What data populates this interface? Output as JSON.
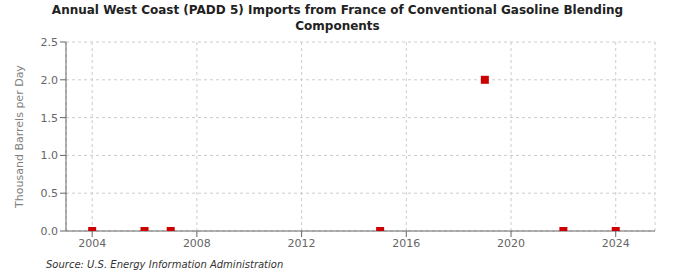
{
  "chart_data": {
    "type": "scatter",
    "title": "Annual West Coast (PADD 5) Imports from France of Conventional Gasoline Blending\nComponents",
    "y_label": "Thousand Barrels per Day",
    "annotations": [
      "Source: U.S. Energy Information Administration"
    ],
    "x": [
      2004,
      2006,
      2007,
      2015,
      2019,
      2022,
      2024
    ],
    "values": [
      0.0,
      0.0,
      0.0,
      0.0,
      2.0,
      0.0,
      0.0
    ],
    "color": "#cc0000",
    "marker": "square",
    "xlim": [
      2003,
      2025.5
    ],
    "ylim": [
      0.0,
      2.5
    ],
    "xticks": [
      2004,
      2008,
      2012,
      2016,
      2020,
      2024
    ],
    "yticks": [
      {
        "value": 0.0,
        "label": "0.0"
      },
      0.5,
      {
        "value": 1.0,
        "label": "1.0"
      },
      1.5,
      {
        "value": 2.0,
        "label": "2.0"
      },
      2.5
    ],
    "grid": true
  }
}
